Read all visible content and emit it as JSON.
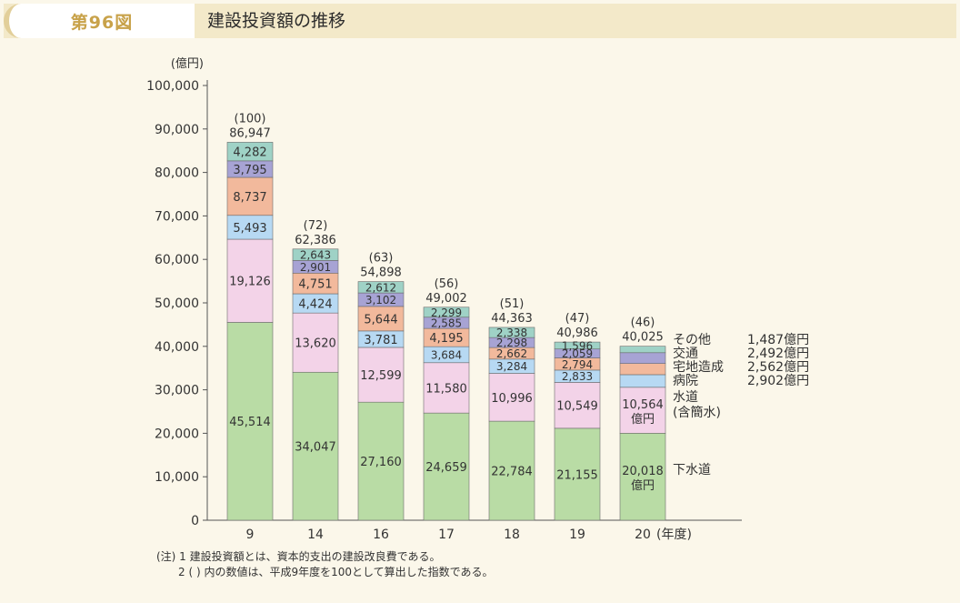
{
  "header": {
    "figure_label": "第96図",
    "title": "建設投資額の推移"
  },
  "chart_data": {
    "type": "bar",
    "stacked": true,
    "ylabel": "(億円)",
    "xlabel": "(年度)",
    "ylim": [
      0,
      100000
    ],
    "yticks": [
      "0",
      "10,000",
      "20,000",
      "30,000",
      "40,000",
      "50,000",
      "60,000",
      "70,000",
      "80,000",
      "90,000",
      "100,000"
    ],
    "categories": [
      "9",
      "14",
      "16",
      "17",
      "18",
      "19",
      "20"
    ],
    "index_labels": [
      "(100)",
      "(72)",
      "(63)",
      "(56)",
      "(51)",
      "(47)",
      "(46)"
    ],
    "totals": [
      86947,
      62386,
      54898,
      49002,
      44363,
      40986,
      40025
    ],
    "total_labels": [
      "86,947",
      "62,386",
      "54,898",
      "49,002",
      "44,363",
      "40,986",
      "40,025"
    ],
    "series": [
      {
        "name": "下水道",
        "color": "#b9dca5",
        "values": [
          45514,
          34047,
          27160,
          24659,
          22784,
          21155,
          20018
        ],
        "labels": [
          "45,514",
          "34,047",
          "27,160",
          "24,659",
          "22,784",
          "21,155",
          "20,018\n億円"
        ]
      },
      {
        "name": "水道(含簡水)",
        "color": "#f3d3e8",
        "values": [
          19126,
          13620,
          12599,
          11580,
          10996,
          10549,
          10564
        ],
        "labels": [
          "19,126",
          "13,620",
          "12,599",
          "11,580",
          "10,996",
          "10,549",
          "10,564\n億円"
        ]
      },
      {
        "name": "病院",
        "color": "#b7d9f3",
        "values": [
          5493,
          4424,
          3781,
          3684,
          3284,
          2833,
          2902
        ],
        "labels": [
          "5,493",
          "4,424",
          "3,781",
          "3,684",
          "3,284",
          "2,833",
          ""
        ]
      },
      {
        "name": "宅地造成",
        "color": "#f2b99c",
        "values": [
          8737,
          4751,
          5644,
          4195,
          2662,
          2794,
          2562
        ],
        "labels": [
          "8,737",
          "4,751",
          "5,644",
          "4,195",
          "2,662",
          "2,794",
          ""
        ]
      },
      {
        "name": "交通",
        "color": "#a7a3d4",
        "values": [
          3795,
          2901,
          3102,
          2585,
          2298,
          2059,
          2492
        ],
        "labels": [
          "3,795",
          "2,901",
          "3,102",
          "2,585",
          "2,298",
          "2,059",
          ""
        ]
      },
      {
        "name": "その他",
        "color": "#9fd2c6",
        "values": [
          4282,
          2643,
          2612,
          2299,
          2338,
          1596,
          1487
        ],
        "labels": [
          "4,282",
          "2,643",
          "2,612",
          "2,299",
          "2,338",
          "1,596",
          ""
        ]
      }
    ],
    "legend": [
      {
        "label": "その他",
        "value": "1,487億円"
      },
      {
        "label": "交通",
        "value": "2,492億円"
      },
      {
        "label": "宅地造成",
        "value": "2,562億円"
      },
      {
        "label": "病院",
        "value": "2,902億円"
      },
      {
        "label": "水道",
        "value": ""
      },
      {
        "label": "(含簡水)",
        "value": ""
      },
      {
        "label": "下水道",
        "value": ""
      }
    ]
  },
  "notes": [
    "(注) 1 建設投資額とは、資本的支出の建設改良費である。",
    "2 ( ) 内の数値は、平成9年度を100として算出した指数である。"
  ]
}
